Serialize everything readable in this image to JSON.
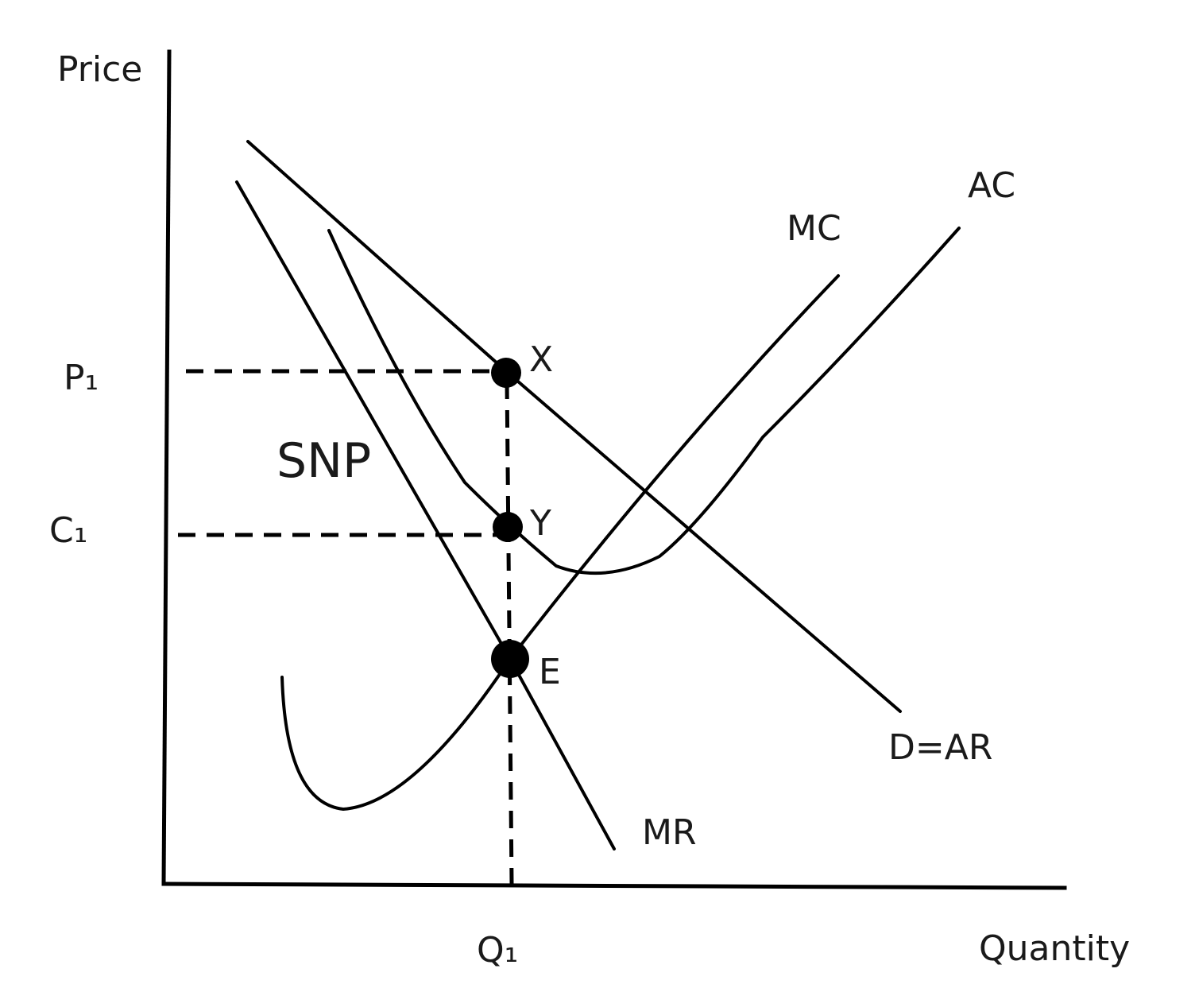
{
  "axes": {
    "y_label": "Price",
    "x_label": "Quantity"
  },
  "levels": {
    "p1": "P₁",
    "c1": "C₁",
    "q1": "Q₁"
  },
  "curves": {
    "mc": "MC",
    "ac": "AC",
    "demand": "D=AR",
    "mr": "MR"
  },
  "points": {
    "x": "X",
    "y": "Y",
    "e": "E"
  },
  "regions": {
    "snp": "SNP"
  }
}
